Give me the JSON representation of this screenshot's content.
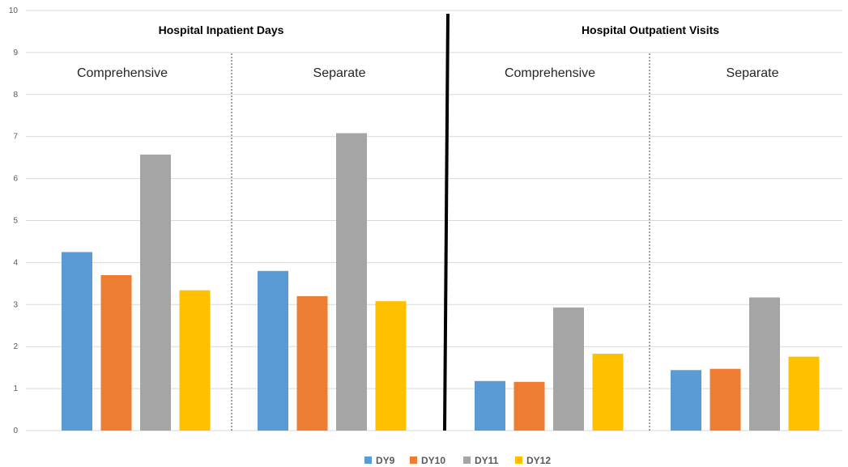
{
  "chart_data": {
    "type": "bar",
    "ylim": [
      0,
      10
    ],
    "yticks": [
      "0",
      "1",
      "2",
      "3",
      "4",
      "5",
      "6",
      "7",
      "8",
      "9",
      "10"
    ],
    "grid": true,
    "legend_position": "bottom",
    "groups": [
      {
        "title": "Hospital Inpatient Days",
        "categories": [
          "Comprehensive",
          "Separate"
        ]
      },
      {
        "title": "Hospital Outpatient Visits",
        "categories": [
          "Comprehensive",
          "Separate"
        ]
      }
    ],
    "categories": [
      "Hospital Inpatient Days – Comprehensive",
      "Hospital Inpatient Days – Separate",
      "Hospital Outpatient Visits – Comprehensive",
      "Hospital Outpatient Visits – Separate"
    ],
    "series": [
      {
        "name": "DY9",
        "color": "#5B9BD5",
        "values": [
          4.25,
          3.8,
          1.18,
          1.44
        ]
      },
      {
        "name": "DY10",
        "color": "#ED7D31",
        "values": [
          3.7,
          3.2,
          1.16,
          1.47
        ]
      },
      {
        "name": "DY11",
        "color": "#A5A5A5",
        "values": [
          6.57,
          7.08,
          2.93,
          3.17
        ]
      },
      {
        "name": "DY12",
        "color": "#FFC000",
        "values": [
          3.34,
          3.08,
          1.83,
          1.76
        ]
      }
    ]
  }
}
